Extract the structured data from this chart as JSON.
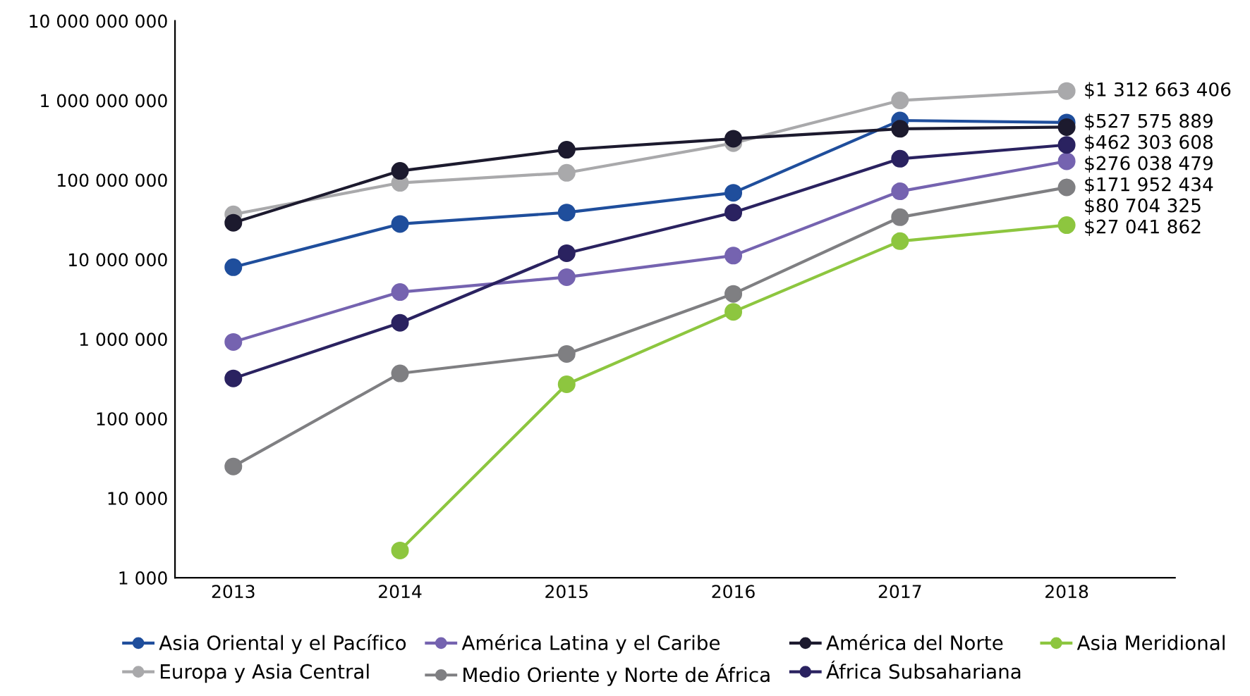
{
  "chart_data": {
    "type": "line",
    "categories": [
      "2013",
      "2014",
      "2015",
      "2016",
      "2017",
      "2018"
    ],
    "log": "y",
    "ylim": [
      1000,
      10000000000
    ],
    "yticks": [
      {
        "value": 1000,
        "label": "1 000"
      },
      {
        "value": 10000,
        "label": "10 000"
      },
      {
        "value": 100000,
        "label": "100 000"
      },
      {
        "value": 1000000,
        "label": "1 000 000"
      },
      {
        "value": 10000000,
        "label": "10 000 000"
      },
      {
        "value": 100000000,
        "label": "100 000 000"
      },
      {
        "value": 1000000000,
        "label": "1 000 000 000"
      },
      {
        "value": 10000000000,
        "label": "10 000 000 000"
      }
    ],
    "grid": false,
    "legend": "bottom",
    "marker": "circle",
    "line_style": "solid",
    "series": [
      {
        "name": "Asia Oriental y el Pacífico",
        "color": "#1f4e9c",
        "values": [
          8000000,
          28000000,
          39000000,
          69000000,
          560000000,
          527575889
        ],
        "value_labels": [
          null,
          null,
          null,
          null,
          null,
          "$527 575 889"
        ]
      },
      {
        "name": "Europa y Asia Central",
        "color": "#a9a9ab",
        "values": [
          37000000,
          92000000,
          123000000,
          290000000,
          1000000000,
          1312663406
        ],
        "value_labels": [
          null,
          null,
          null,
          null,
          null,
          "$1 312 663 406"
        ]
      },
      {
        "name": "América Latina y el Caribe",
        "color": "#7563b0",
        "values": [
          920000,
          3900000,
          6000000,
          11200000,
          72000000,
          171952434
        ],
        "value_labels": [
          null,
          null,
          null,
          null,
          null,
          "$171 952 434"
        ]
      },
      {
        "name": "Medio Oriente y Norte de África",
        "color": "#7f7f82",
        "values": [
          25000,
          370000,
          650000,
          3700000,
          34000000,
          80704325
        ],
        "value_labels": [
          null,
          null,
          null,
          null,
          null,
          "$80 704 325"
        ]
      },
      {
        "name": "América del Norte",
        "color": "#1c1a2e",
        "values": [
          29000000,
          130000000,
          240000000,
          330000000,
          440000000,
          462303608
        ],
        "value_labels": [
          null,
          null,
          null,
          null,
          null,
          "$462 303 608"
        ]
      },
      {
        "name": "África Subsahariana",
        "color": "#2a2260",
        "values": [
          320000,
          1600000,
          12000000,
          39000000,
          185000000,
          276038479
        ],
        "value_labels": [
          null,
          null,
          null,
          null,
          null,
          "$276 038 479"
        ]
      },
      {
        "name": "Asia Meridional",
        "color": "#8dc63f",
        "values": [
          null,
          2200,
          270000,
          2200000,
          17000000,
          27041862
        ],
        "value_labels": [
          null,
          null,
          null,
          null,
          null,
          "$27 041 862"
        ]
      }
    ]
  }
}
